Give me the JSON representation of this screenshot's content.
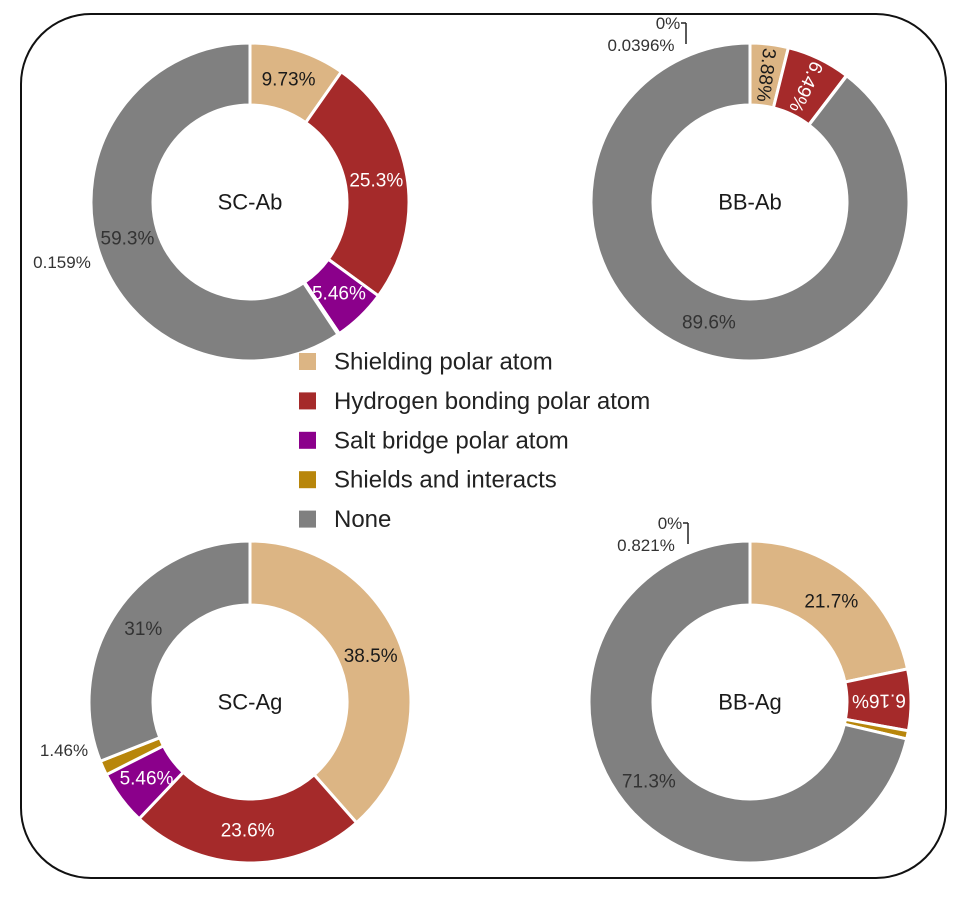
{
  "legend": {
    "items": [
      {
        "label": "Shielding polar atom",
        "color": "#dcb584"
      },
      {
        "label": "Hydrogen bonding polar atom",
        "color": "#a52a2a"
      },
      {
        "label": "Salt bridge polar atom",
        "color": "#8b008b"
      },
      {
        "label": "Shields and interacts",
        "color": "#b8860b"
      },
      {
        "label": "None",
        "color": "#808080"
      }
    ]
  },
  "chart_data": [
    {
      "type": "pie",
      "title": "SC-Ab",
      "categories": [
        "Shielding polar atom",
        "Hydrogen bonding polar atom",
        "Salt bridge polar atom",
        "Shields and interacts",
        "None"
      ],
      "values": [
        9.73,
        25.3,
        5.46,
        0.159,
        59.3
      ],
      "labels": [
        "9.73%",
        "25.3%",
        "5.46%",
        "0.159%",
        "59.3%"
      ]
    },
    {
      "type": "pie",
      "title": "BB-Ab",
      "categories": [
        "Shielding polar atom",
        "Hydrogen bonding polar atom",
        "Salt bridge polar atom",
        "Shields and interacts",
        "None"
      ],
      "values": [
        3.88,
        6.49,
        0,
        0.0396,
        89.6
      ],
      "labels": [
        "3.88%",
        "6.49%",
        "0%",
        "0.0396%",
        "89.6%"
      ]
    },
    {
      "type": "pie",
      "title": "SC-Ag",
      "categories": [
        "Shielding polar atom",
        "Hydrogen bonding polar atom",
        "Salt bridge polar atom",
        "Shields and interacts",
        "None"
      ],
      "values": [
        38.5,
        23.6,
        5.46,
        1.46,
        31
      ],
      "labels": [
        "38.5%",
        "23.6%",
        "5.46%",
        "1.46%",
        "31%"
      ]
    },
    {
      "type": "pie",
      "title": "BB-Ag",
      "categories": [
        "Shielding polar atom",
        "Hydrogen bonding polar atom",
        "Salt bridge polar atom",
        "Shields and interacts",
        "None"
      ],
      "values": [
        21.7,
        6.16,
        0,
        0.821,
        71.3
      ],
      "labels": [
        "21.7%",
        "6.16%",
        "0%",
        "0.821%",
        "71.3%"
      ]
    }
  ]
}
